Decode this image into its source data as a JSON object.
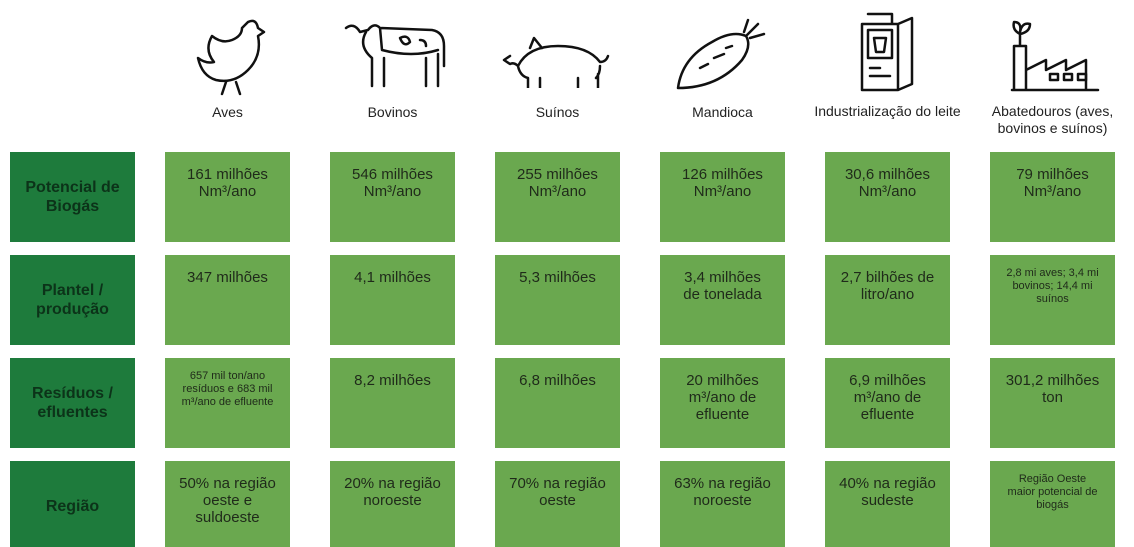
{
  "columns": [
    "Aves",
    "Bovinos",
    "Suínos",
    "Mandioca",
    "Industrialização do leite",
    "Abatedouros (aves, bovinos e suínos)"
  ],
  "rows": [
    {
      "label": "Potencial de Biogás",
      "cells": [
        "161 milhões Nm³/ano",
        "546 milhões Nm³/ano",
        "255 milhões Nm³/ano",
        "126 milhões Nm³/ano",
        "30,6 milhões Nm³/ano",
        "79 milhões Nm³/ano"
      ]
    },
    {
      "label": "Plantel / produção",
      "cells": [
        "347 milhões",
        "4,1 milhões",
        "5,3 milhões",
        "3,4 milhões de tonelada",
        "2,7 bilhões de litro/ano",
        "2,8 mi aves; 3,4 mi bovinos; 14,4 mi suínos"
      ]
    },
    {
      "label": "Resíduos / efluentes",
      "cells": [
        "657 mil ton/ano resíduos e 683 mil m³/ano de efluente",
        "8,2 milhões",
        "6,8 milhões",
        "20 milhões m³/ano de efluente",
        "6,9 milhões m³/ano de efluente",
        "301,2 milhões ton"
      ]
    },
    {
      "label": "Região",
      "cells": [
        "50% na região oeste e suldoeste",
        "20% na região noroeste",
        "70% na região oeste",
        "63% na região noroeste",
        "40% na região sudeste",
        "Região Oeste maior potencial de biogás"
      ]
    }
  ]
}
